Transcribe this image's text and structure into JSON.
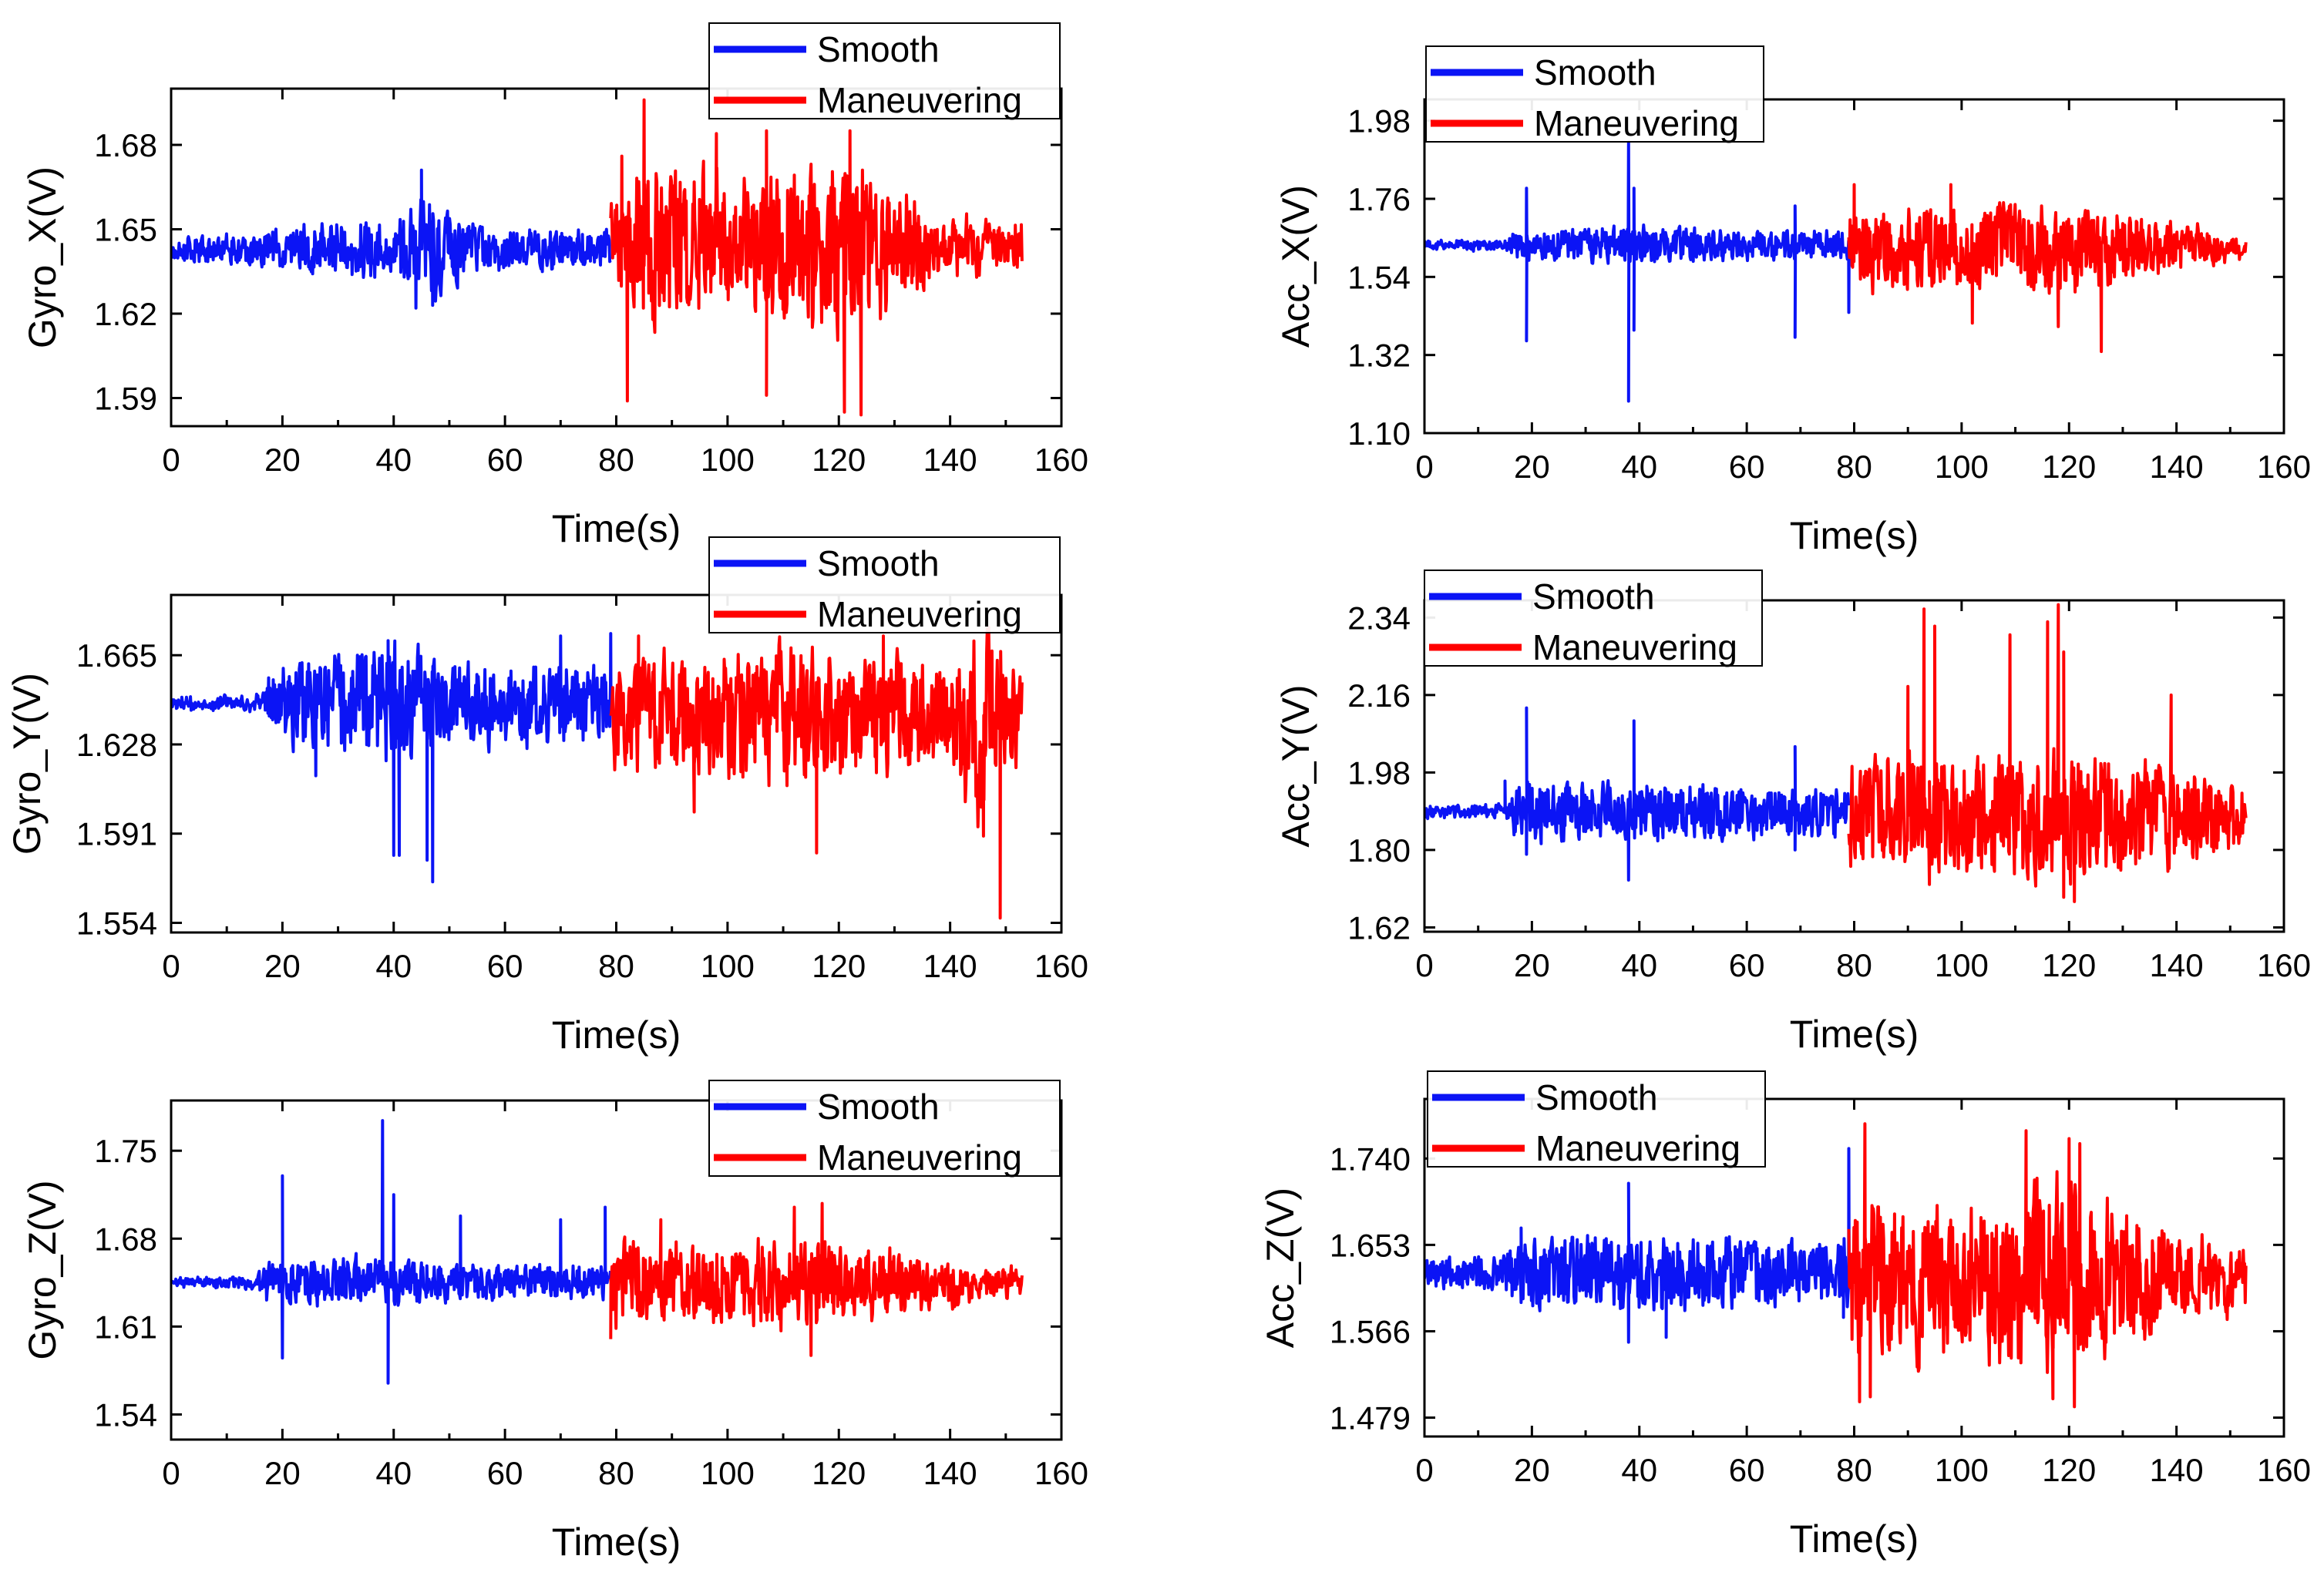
{
  "figure": {
    "colors": {
      "smooth": "#0b14f5",
      "maneuvering": "#ff0000",
      "axis": "#000000",
      "background": "#ffffff"
    }
  },
  "chart_data": [
    {
      "id": "gyro-x",
      "type": "line",
      "title": "",
      "xlabel": "Time(s)",
      "ylabel": "Gyro_X(V)",
      "xlim": [
        0,
        160
      ],
      "ylim": [
        1.58,
        1.7
      ],
      "xticks": [
        "0",
        "20",
        "40",
        "60",
        "80",
        "100",
        "120",
        "140",
        "160"
      ],
      "yticks": [
        "1.59",
        "1.62",
        "1.65",
        "1.68"
      ],
      "legend": [
        "Smooth",
        "Maneuvering"
      ],
      "legend_position": "top-right",
      "switch_time": 79,
      "end_time": 153,
      "series": [
        {
          "name": "Smooth",
          "t_start": 0,
          "t_end": 79,
          "baseline": 1.643,
          "amplitude": 0.004,
          "envelope": [
            [
              0,
              0.003
            ],
            [
              15,
              0.004
            ],
            [
              25,
              0.007
            ],
            [
              40,
              0.008
            ],
            [
              45,
              0.015
            ],
            [
              55,
              0.006
            ],
            [
              79,
              0.005
            ]
          ],
          "spikes": [
            [
              45,
              1.671
            ],
            [
              44,
              1.622
            ],
            [
              47,
              1.623
            ]
          ]
        },
        {
          "name": "Maneuvering",
          "t_start": 79,
          "t_end": 153,
          "baseline": 1.644,
          "amplitude": 0.014,
          "envelope": [
            [
              79,
              0.012
            ],
            [
              85,
              0.022
            ],
            [
              100,
              0.016
            ],
            [
              110,
              0.02
            ],
            [
              120,
              0.026
            ],
            [
              130,
              0.014
            ],
            [
              140,
              0.006
            ],
            [
              153,
              0.005
            ]
          ],
          "spikes": [
            [
              82,
              1.589
            ],
            [
              85,
              1.696
            ],
            [
              81,
              1.676
            ],
            [
              107,
              1.591
            ],
            [
              107,
              1.685
            ],
            [
              121,
              1.585
            ],
            [
              124,
              1.584
            ],
            [
              122,
              1.685
            ],
            [
              98,
              1.684
            ]
          ]
        }
      ]
    },
    {
      "id": "gyro-y",
      "type": "line",
      "title": "",
      "xlabel": "Time(s)",
      "ylabel": "Gyro_Y(V)",
      "xlim": [
        0,
        160
      ],
      "ylim": [
        1.55,
        1.69
      ],
      "xticks": [
        "0",
        "20",
        "40",
        "60",
        "80",
        "100",
        "120",
        "140",
        "160"
      ],
      "yticks": [
        "1.554",
        "1.591",
        "1.628",
        "1.665"
      ],
      "legend": [
        "Smooth",
        "Maneuvering"
      ],
      "legend_position": "top-right",
      "switch_time": 79,
      "end_time": 153,
      "series": [
        {
          "name": "Smooth",
          "t_start": 0,
          "t_end": 79,
          "baseline": 1.645,
          "amplitude": 0.008,
          "envelope": [
            [
              0,
              0.001
            ],
            [
              15,
              0.001
            ],
            [
              18,
              0.012
            ],
            [
              30,
              0.015
            ],
            [
              40,
              0.02
            ],
            [
              50,
              0.012
            ],
            [
              79,
              0.012
            ]
          ],
          "spikes": [
            [
              40,
              1.582
            ],
            [
              41,
              1.582
            ],
            [
              47,
              1.571
            ],
            [
              46,
              1.58
            ],
            [
              39,
              1.671
            ],
            [
              70,
              1.673
            ],
            [
              79,
              1.674
            ],
            [
              26,
              1.615
            ]
          ]
        },
        {
          "name": "Maneuvering",
          "t_start": 79,
          "t_end": 153,
          "baseline": 1.64,
          "amplitude": 0.012,
          "envelope": [
            [
              79,
              0.015
            ],
            [
              100,
              0.02
            ],
            [
              120,
              0.02
            ],
            [
              140,
              0.015
            ],
            [
              145,
              0.03
            ],
            [
              153,
              0.01
            ]
          ],
          "spikes": [
            [
              84,
              1.673
            ],
            [
              128,
              1.673
            ],
            [
              149,
              1.556
            ],
            [
              149,
              1.561
            ],
            [
              146,
              1.59
            ],
            [
              116,
              1.583
            ],
            [
              94,
              1.6
            ],
            [
              152,
              1.648
            ]
          ]
        }
      ]
    },
    {
      "id": "gyro-z",
      "type": "line",
      "title": "",
      "xlabel": "Time(s)",
      "ylabel": "Gyro_Z(V)",
      "xlim": [
        0,
        160
      ],
      "ylim": [
        1.52,
        1.79
      ],
      "xticks": [
        "0",
        "20",
        "40",
        "60",
        "80",
        "100",
        "120",
        "140",
        "160"
      ],
      "yticks": [
        "1.54",
        "1.61",
        "1.68",
        "1.75"
      ],
      "legend": [
        "Smooth",
        "Maneuvering"
      ],
      "legend_position": "top-right",
      "switch_time": 79,
      "end_time": 153,
      "series": [
        {
          "name": "Smooth",
          "t_start": 0,
          "t_end": 79,
          "baseline": 1.645,
          "amplitude": 0.008,
          "envelope": [
            [
              0,
              0.002
            ],
            [
              15,
              0.003
            ],
            [
              17,
              0.012
            ],
            [
              40,
              0.015
            ],
            [
              50,
              0.01
            ],
            [
              79,
              0.01
            ]
          ],
          "spikes": [
            [
              20,
              1.73
            ],
            [
              20,
              1.585
            ],
            [
              38,
              1.774
            ],
            [
              39,
              1.565
            ],
            [
              40,
              1.715
            ],
            [
              52,
              1.698
            ],
            [
              70,
              1.695
            ],
            [
              78,
              1.705
            ]
          ]
        },
        {
          "name": "Maneuvering",
          "t_start": 79,
          "t_end": 153,
          "baseline": 1.645,
          "amplitude": 0.018,
          "envelope": [
            [
              79,
              0.025
            ],
            [
              100,
              0.022
            ],
            [
              115,
              0.028
            ],
            [
              130,
              0.018
            ],
            [
              145,
              0.01
            ],
            [
              153,
              0.006
            ]
          ],
          "spikes": [
            [
              79,
              1.6
            ],
            [
              115,
              1.587
            ],
            [
              117,
              1.708
            ],
            [
              112,
              1.705
            ],
            [
              88,
              1.695
            ]
          ]
        }
      ]
    },
    {
      "id": "acc-x",
      "type": "line",
      "title": "",
      "xlabel": "Time(s)",
      "ylabel": "Acc_X(V)",
      "xlim": [
        0,
        160
      ],
      "ylim": [
        1.1,
        2.04
      ],
      "xticks": [
        "0",
        "20",
        "40",
        "60",
        "80",
        "100",
        "120",
        "140",
        "160"
      ],
      "yticks": [
        "1.10",
        "1.32",
        "1.54",
        "1.76",
        "1.98"
      ],
      "legend": [
        "Smooth",
        "Maneuvering"
      ],
      "legend_position": "top-left",
      "switch_time": 79,
      "end_time": 153,
      "series": [
        {
          "name": "Smooth",
          "t_start": 0,
          "t_end": 79,
          "baseline": 1.63,
          "amplitude": 0.015,
          "envelope": [
            [
              0,
              0.01
            ],
            [
              15,
              0.01
            ],
            [
              17,
              0.03
            ],
            [
              40,
              0.04
            ],
            [
              60,
              0.03
            ],
            [
              79,
              0.03
            ]
          ],
          "spikes": [
            [
              19,
              1.36
            ],
            [
              19,
              1.79
            ],
            [
              38,
              1.19
            ],
            [
              38,
              1.92
            ],
            [
              39,
              1.39
            ],
            [
              39,
              1.79
            ],
            [
              69,
              1.37
            ],
            [
              69,
              1.74
            ],
            [
              79,
              1.44
            ]
          ]
        },
        {
          "name": "Maneuvering",
          "t_start": 79,
          "t_end": 153,
          "baseline": 1.62,
          "amplitude": 0.05,
          "envelope": [
            [
              79,
              0.08
            ],
            [
              100,
              0.09
            ],
            [
              120,
              0.09
            ],
            [
              135,
              0.06
            ],
            [
              153,
              0.02
            ]
          ],
          "spikes": [
            [
              80,
              1.8
            ],
            [
              98,
              1.8
            ],
            [
              126,
              1.33
            ],
            [
              118,
              1.4
            ],
            [
              102,
              1.41
            ]
          ]
        }
      ]
    },
    {
      "id": "acc-y",
      "type": "line",
      "title": "",
      "xlabel": "Time(s)",
      "ylabel": "Acc_Y(V)",
      "xlim": [
        0,
        160
      ],
      "ylim": [
        1.61,
        2.38
      ],
      "xticks": [
        "0",
        "20",
        "40",
        "60",
        "80",
        "100",
        "120",
        "140",
        "160"
      ],
      "yticks": [
        "1.62",
        "1.80",
        "1.98",
        "2.16",
        "2.34"
      ],
      "legend": [
        "Smooth",
        "Maneuvering"
      ],
      "legend_position": "top-left",
      "switch_time": 79,
      "end_time": 153,
      "series": [
        {
          "name": "Smooth",
          "t_start": 0,
          "t_end": 79,
          "baseline": 1.89,
          "amplitude": 0.02,
          "envelope": [
            [
              0,
              0.008
            ],
            [
              15,
              0.01
            ],
            [
              17,
              0.05
            ],
            [
              40,
              0.05
            ],
            [
              79,
              0.04
            ]
          ],
          "spikes": [
            [
              19,
              2.13
            ],
            [
              19,
              1.79
            ],
            [
              39,
              2.1
            ],
            [
              38,
              1.73
            ],
            [
              15,
              1.96
            ],
            [
              69,
              2.04
            ],
            [
              69,
              1.8
            ]
          ]
        },
        {
          "name": "Maneuvering",
          "t_start": 79,
          "t_end": 153,
          "baseline": 1.88,
          "amplitude": 0.06,
          "envelope": [
            [
              79,
              0.1
            ],
            [
              100,
              0.1
            ],
            [
              120,
              0.11
            ],
            [
              140,
              0.08
            ],
            [
              153,
              0.05
            ]
          ],
          "spikes": [
            [
              93,
              2.36
            ],
            [
              95,
              2.32
            ],
            [
              109,
              2.3
            ],
            [
              116,
              2.33
            ],
            [
              118,
              2.37
            ],
            [
              119,
              2.26
            ],
            [
              90,
              2.18
            ],
            [
              139,
              2.16
            ],
            [
              121,
              1.68
            ],
            [
              119,
              1.69
            ],
            [
              94,
              1.72
            ]
          ]
        }
      ]
    },
    {
      "id": "acc-z",
      "type": "line",
      "title": "",
      "xlabel": "Time(s)",
      "ylabel": "Acc_Z(V)",
      "xlim": [
        0,
        160
      ],
      "ylim": [
        1.46,
        1.8
      ],
      "xticks": [
        "0",
        "20",
        "40",
        "60",
        "80",
        "100",
        "120",
        "140",
        "160"
      ],
      "yticks": [
        "1.479",
        "1.566",
        "1.653",
        "1.740"
      ],
      "legend": [
        "Smooth",
        "Maneuvering"
      ],
      "legend_position": "top-left",
      "switch_time": 79,
      "end_time": 153,
      "series": [
        {
          "name": "Smooth",
          "t_start": 0,
          "t_end": 79,
          "baseline": 1.625,
          "amplitude": 0.012,
          "envelope": [
            [
              0,
              0.01
            ],
            [
              15,
              0.012
            ],
            [
              17,
              0.025
            ],
            [
              40,
              0.03
            ],
            [
              79,
              0.025
            ]
          ],
          "spikes": [
            [
              38,
              1.715
            ],
            [
              38,
              1.555
            ],
            [
              18,
              1.67
            ],
            [
              45,
              1.56
            ],
            [
              79,
              1.75
            ],
            [
              78,
              1.58
            ]
          ]
        },
        {
          "name": "Maneuvering",
          "t_start": 79,
          "t_end": 153,
          "baseline": 1.62,
          "amplitude": 0.04,
          "envelope": [
            [
              79,
              0.06
            ],
            [
              100,
              0.05
            ],
            [
              115,
              0.07
            ],
            [
              125,
              0.06
            ],
            [
              140,
              0.03
            ],
            [
              153,
              0.02
            ]
          ],
          "spikes": [
            [
              82,
              1.775
            ],
            [
              81,
              1.495
            ],
            [
              112,
              1.768
            ],
            [
              120,
              1.76
            ],
            [
              122,
              1.755
            ],
            [
              117,
              1.498
            ],
            [
              121,
              1.49
            ],
            [
              83,
              1.5
            ]
          ]
        }
      ]
    }
  ]
}
